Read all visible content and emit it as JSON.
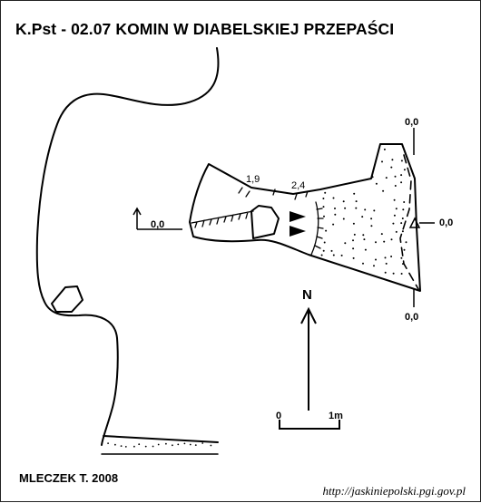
{
  "title": "K.Pst - 02.07  KOMIN W DIABELSKIEJ PRZEPAŚCI",
  "author": "MLECZEK T. 2008",
  "source_url": "http://jaskiniepolski.pgi.gov.pl",
  "north_label": "N",
  "scale_bar": {
    "start_label": "0",
    "end_label": "1m"
  },
  "heights": {
    "left_entrance": "0,0",
    "top_right": "0,0",
    "right_station": "0,0",
    "bottom_right": "0,0",
    "ceiling_a": "1,9",
    "ceiling_b": "2,4"
  },
  "colors": {
    "ink": "#000000",
    "paper": "#ffffff"
  }
}
